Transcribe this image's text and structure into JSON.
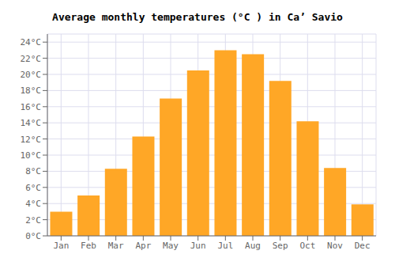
{
  "chart_data": {
    "type": "bar",
    "title": "Average monthly temperatures (°C ) in Ca’ Savio",
    "categories": [
      "Jan",
      "Feb",
      "Mar",
      "Apr",
      "May",
      "Jun",
      "Jul",
      "Aug",
      "Sep",
      "Oct",
      "Nov",
      "Dec"
    ],
    "values": [
      3.0,
      5.0,
      8.3,
      12.3,
      17.0,
      20.5,
      23.0,
      22.5,
      19.2,
      14.2,
      8.4,
      3.9
    ],
    "color": "#FFA726",
    "ylim": [
      0,
      25
    ],
    "yticks": [
      {
        "value": 0,
        "label": "0°C"
      },
      {
        "value": 2,
        "label": "2°C"
      },
      {
        "value": 4,
        "label": "4°C"
      },
      {
        "value": 6,
        "label": "6°C"
      },
      {
        "value": 8,
        "label": "8°C"
      },
      {
        "value": 10,
        "label": "10°C"
      },
      {
        "value": 12,
        "label": "12°C"
      },
      {
        "value": 14,
        "label": "14°C"
      },
      {
        "value": 16,
        "label": "16°C"
      },
      {
        "value": 18,
        "label": "18°C"
      },
      {
        "value": 20,
        "label": "20°C"
      },
      {
        "value": 22,
        "label": "22°C"
      },
      {
        "value": 24,
        "label": "24°C"
      }
    ],
    "grid": true
  }
}
